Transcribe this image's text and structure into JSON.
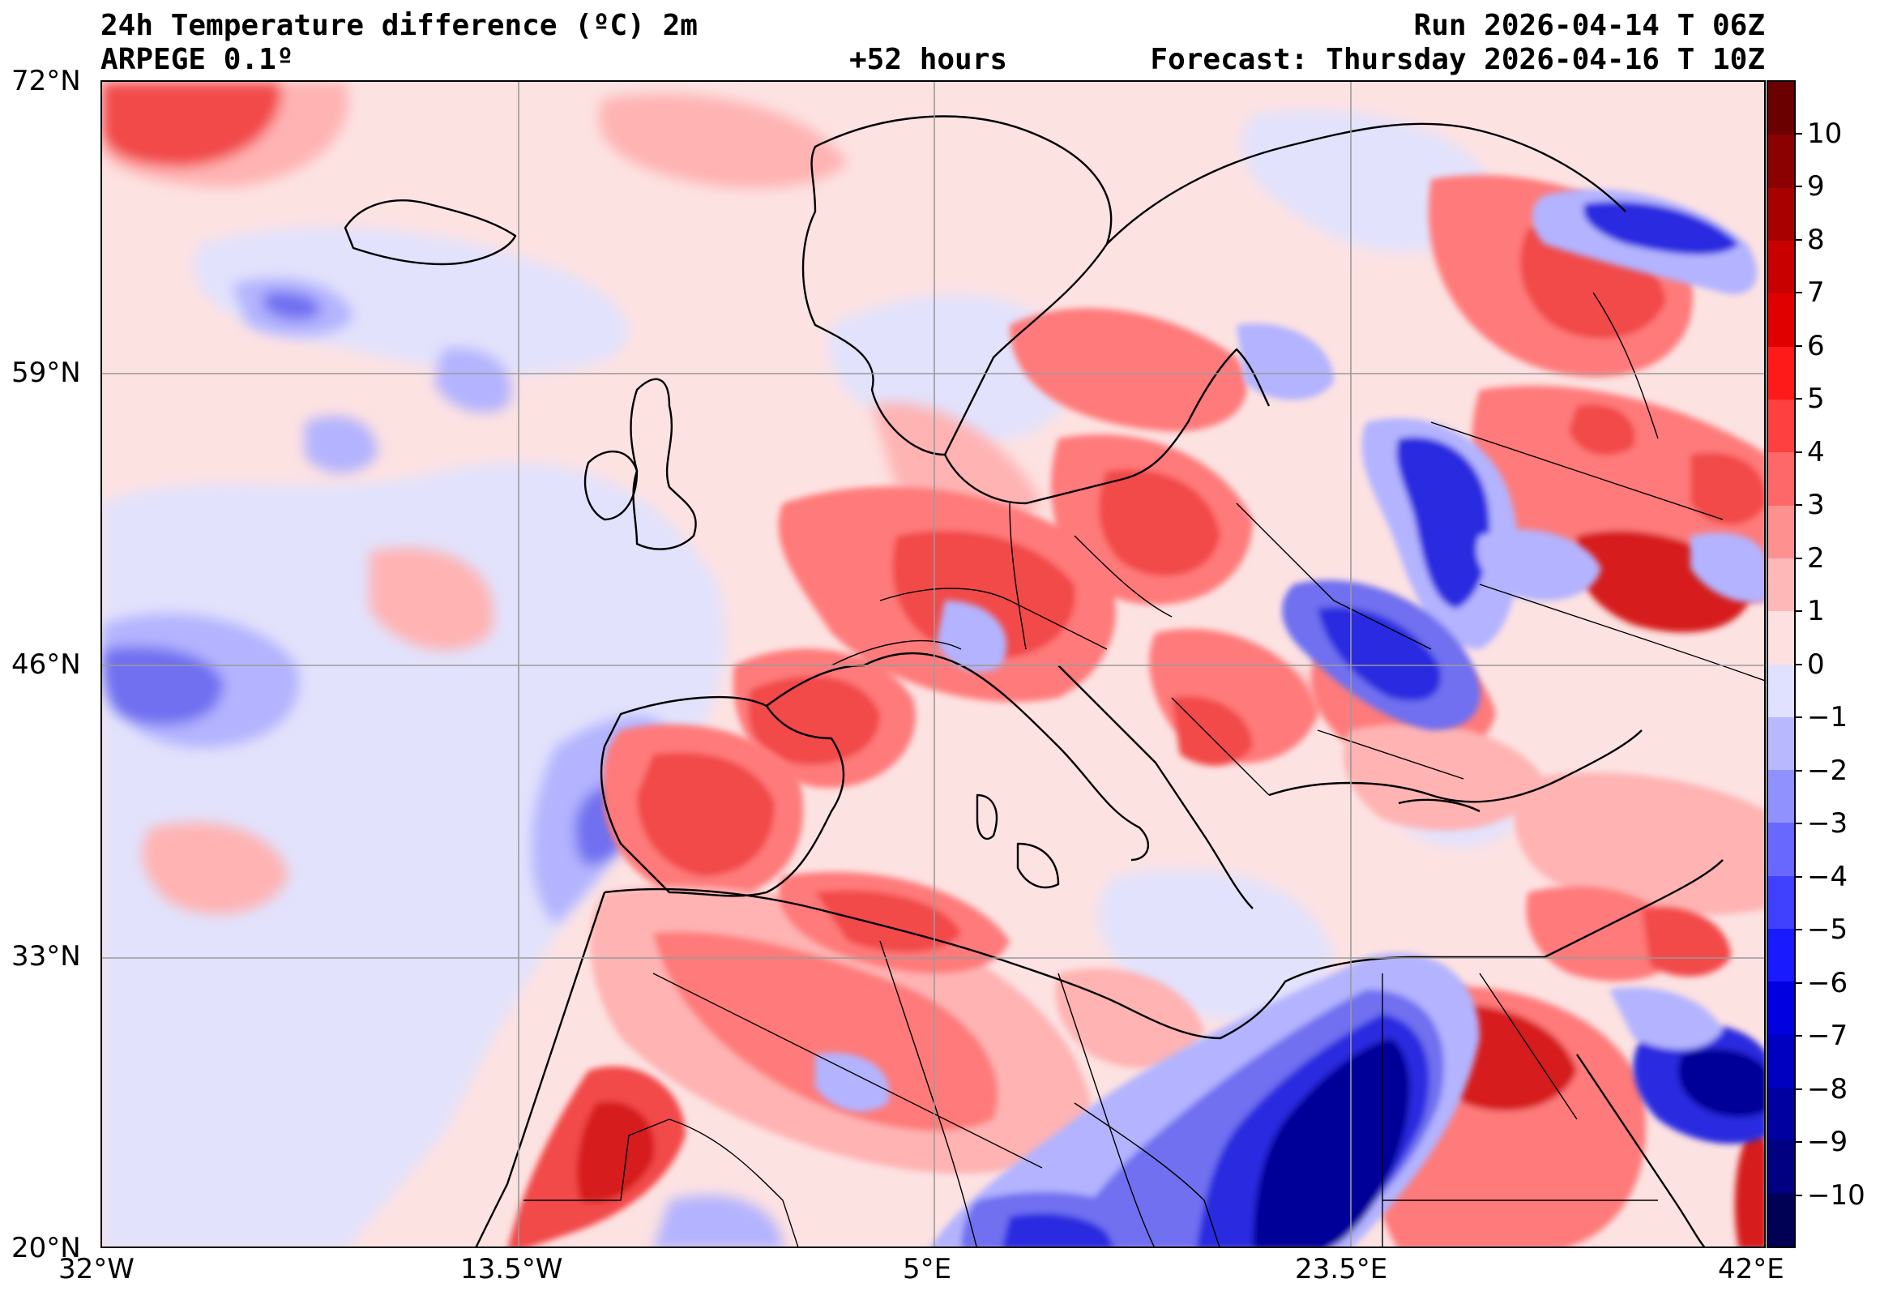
{
  "header": {
    "title_left": "24h Temperature difference (ºC) 2m",
    "model": "ARPEGE 0.1º",
    "lead_time": "+52 hours",
    "run": "Run 2026-04-14 T 06Z",
    "forecast": "Forecast: Thursday 2026-04-16 T 10Z"
  },
  "axes": {
    "lon_ticks": [
      "32°W",
      "13.5°W",
      "5°E",
      "23.5°E",
      "42°E"
    ],
    "lat_ticks": [
      "72°N",
      "59°N",
      "46°N",
      "33°N",
      "20°N"
    ]
  },
  "colorbar": {
    "labels": [
      "10",
      "9",
      "8",
      "7",
      "6",
      "5",
      "4",
      "3",
      "2",
      "1",
      "0",
      "−1",
      "−2",
      "−3",
      "−4",
      "−5",
      "−6",
      "−7",
      "−8",
      "−9",
      "−10"
    ],
    "colors": [
      "#6b0000",
      "#8b0000",
      "#a80000",
      "#c80000",
      "#e00000",
      "#ff1a1a",
      "#ff4040",
      "#ff6868",
      "#ff9090",
      "#ffb8b8",
      "#ffe0e0",
      "#e0e0ff",
      "#b8b8ff",
      "#9090ff",
      "#6868ff",
      "#4040ff",
      "#1a1aff",
      "#0000e0",
      "#0000c0",
      "#0000a0",
      "#000080",
      "#000055"
    ]
  },
  "map": {
    "colors": {
      "sea": "#fde2e2",
      "neutral_neg": "#e2e2fc",
      "warm1": "#ffb3b3",
      "warm2": "#ff7a7a",
      "warm3": "#f24848",
      "warm4": "#d61c1c",
      "cold1": "#b3b3ff",
      "cold2": "#7070f0",
      "cold3": "#2a2ae0",
      "cold4": "#000099"
    }
  }
}
